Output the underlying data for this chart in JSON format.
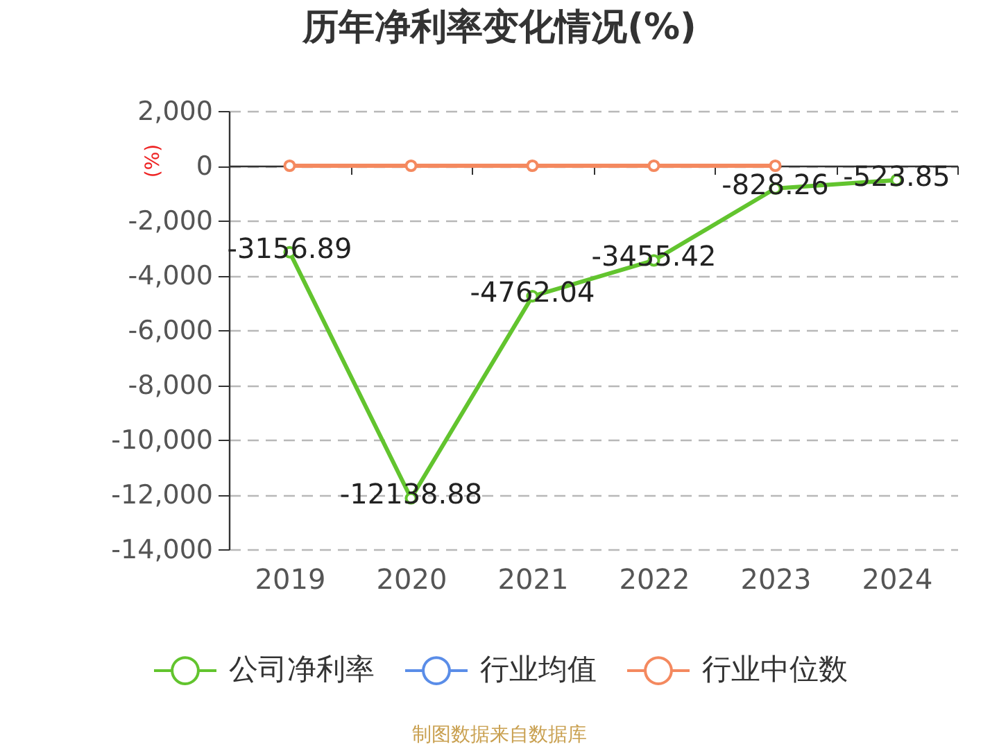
{
  "chart_data": {
    "type": "line",
    "title": "历年净利率变化情况(%)",
    "ylabel": "(%)",
    "categories": [
      "2019",
      "2020",
      "2021",
      "2022",
      "2023",
      "2024"
    ],
    "series": [
      {
        "name": "公司净利率",
        "color": "#62c42e",
        "values": [
          -3156.89,
          -12138.88,
          -4762.04,
          -3455.42,
          -828.26,
          -523.85
        ],
        "value_labels": [
          "-3156.89",
          "-12138.88",
          "-4762.04",
          "-3455.42",
          "-828.26",
          "-523.85"
        ]
      },
      {
        "name": "行业均值",
        "color": "#5a8de8",
        "values": [
          null,
          null,
          null,
          null,
          null,
          null
        ]
      },
      {
        "name": "行业中位数",
        "color": "#f4895f",
        "values": [
          0,
          0,
          0,
          0,
          0,
          null
        ]
      }
    ],
    "ylim": [
      -14000,
      2000
    ],
    "yticks": [
      {
        "value": -14000,
        "label": "-14,000"
      },
      {
        "value": -12000,
        "label": "-12,000"
      },
      {
        "value": -10000,
        "label": "-10,000"
      },
      {
        "value": -8000,
        "label": "-8,000"
      },
      {
        "value": -6000,
        "label": "-6,000"
      },
      {
        "value": -4000,
        "label": "-4,000"
      },
      {
        "value": -2000,
        "label": "-2,000"
      },
      0,
      {
        "value": 2000,
        "label": "2,000"
      }
    ],
    "grid": "y",
    "legend": "bottom",
    "marker": "circle",
    "line_style": "solid",
    "annotations": [
      "制图数据来自数据库"
    ]
  }
}
